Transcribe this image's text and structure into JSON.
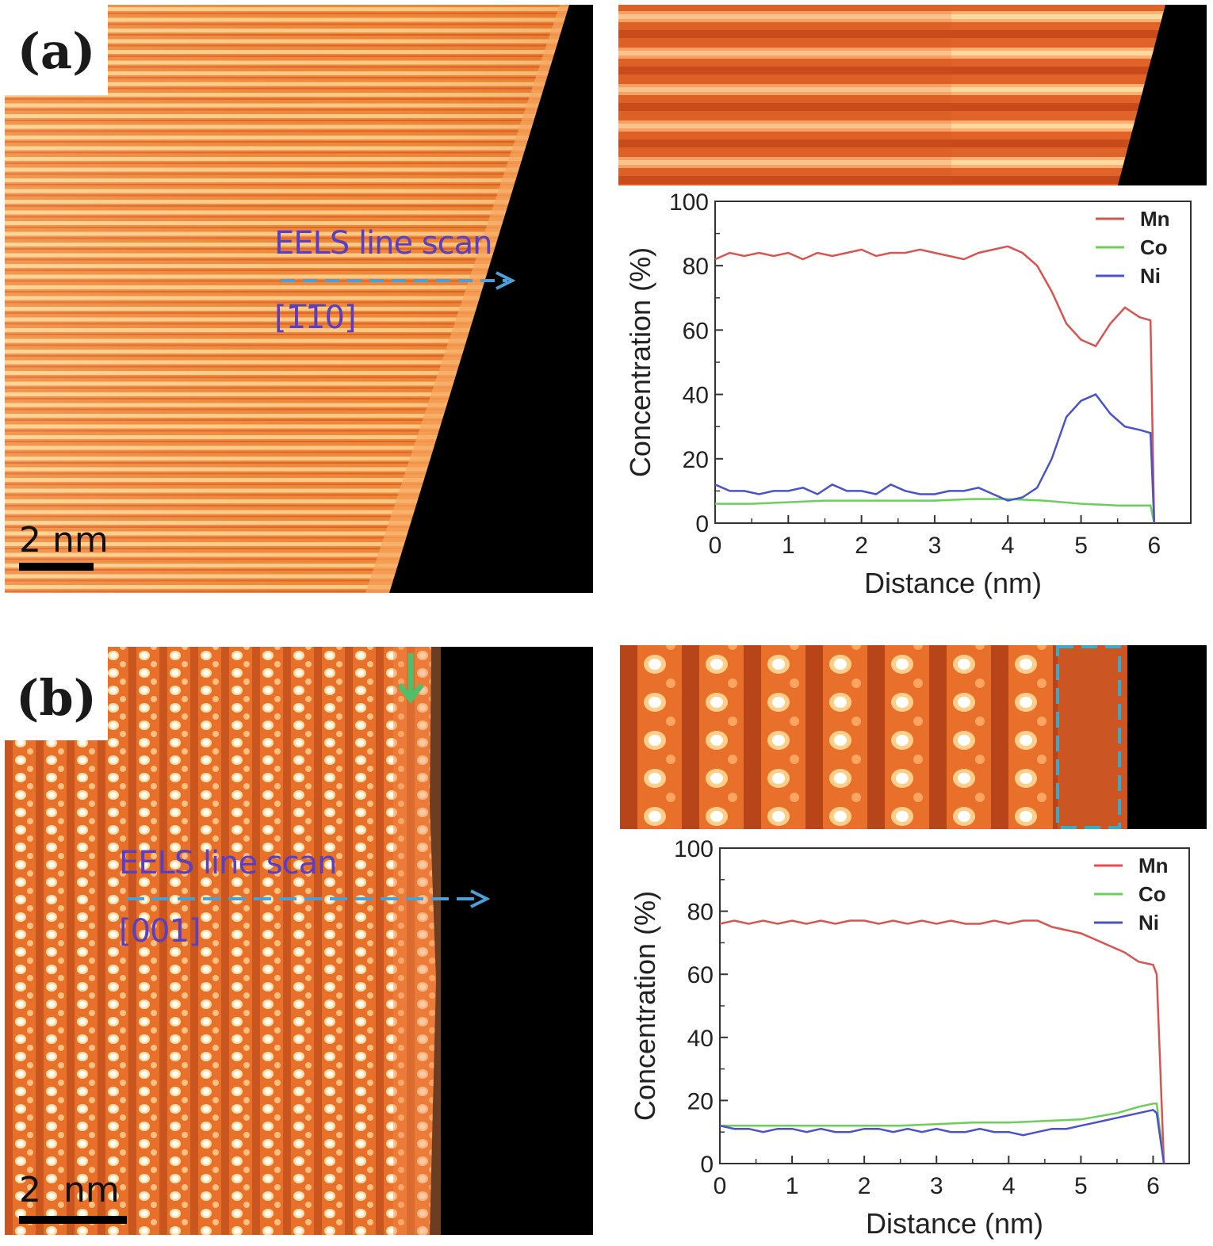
{
  "panel_a": {
    "tag": "(a)",
    "eels_label": "EELS line scan",
    "direction": "[1̅1̅0]",
    "scale": "2 nm"
  },
  "panel_b": {
    "tag": "(b)",
    "eels_label": "EELS line scan",
    "direction": "[001]",
    "scale": "2  nm"
  },
  "colors": {
    "mn": "#d9534f",
    "co": "#6ccf5a",
    "ni": "#4a52c9",
    "haadf": "#f07a2a"
  },
  "chart_data": [
    {
      "type": "line",
      "panel": "a",
      "xlabel": "Distance (nm)",
      "ylabel": "Concentration (%)",
      "xlim": [
        0,
        6.5
      ],
      "ylim": [
        0,
        100
      ],
      "xticks": [
        "0",
        "1",
        "2",
        "3",
        "4",
        "5",
        "6"
      ],
      "yticks": [
        "0",
        "20",
        "40",
        "60",
        "80",
        "100"
      ],
      "legend": "top-right",
      "series": [
        {
          "name": "Mn",
          "color": "#d9534f",
          "x": [
            0,
            0.2,
            0.4,
            0.6,
            0.8,
            1.0,
            1.2,
            1.4,
            1.6,
            1.8,
            2.0,
            2.2,
            2.4,
            2.6,
            2.8,
            3.0,
            3.2,
            3.4,
            3.6,
            3.8,
            4.0,
            4.2,
            4.4,
            4.6,
            4.8,
            5.0,
            5.2,
            5.4,
            5.6,
            5.8,
            5.95,
            6.0
          ],
          "y": [
            82,
            84,
            83,
            84,
            83,
            84,
            82,
            84,
            83,
            84,
            85,
            83,
            84,
            84,
            85,
            84,
            83,
            82,
            84,
            85,
            86,
            84,
            80,
            72,
            62,
            57,
            55,
            62,
            67,
            64,
            63,
            0
          ]
        },
        {
          "name": "Co",
          "color": "#6ccf5a",
          "x": [
            0,
            0.5,
            1.0,
            1.5,
            2.0,
            2.5,
            3.0,
            3.5,
            4.0,
            4.5,
            5.0,
            5.5,
            5.95,
            6.0
          ],
          "y": [
            6,
            6,
            6.5,
            7,
            7,
            7,
            7,
            7.5,
            7.5,
            7,
            6,
            5.5,
            5.5,
            0
          ]
        },
        {
          "name": "Ni",
          "color": "#4a52c9",
          "x": [
            0,
            0.2,
            0.4,
            0.6,
            0.8,
            1.0,
            1.2,
            1.4,
            1.6,
            1.8,
            2.0,
            2.2,
            2.4,
            2.6,
            2.8,
            3.0,
            3.2,
            3.4,
            3.6,
            3.8,
            4.0,
            4.2,
            4.4,
            4.6,
            4.8,
            5.0,
            5.2,
            5.4,
            5.6,
            5.8,
            5.95,
            6.0
          ],
          "y": [
            12,
            10,
            10,
            9,
            10,
            10,
            11,
            9,
            12,
            10,
            10,
            9,
            12,
            10,
            9,
            9,
            10,
            10,
            11,
            9,
            7,
            8,
            11,
            20,
            33,
            38,
            40,
            34,
            30,
            29,
            28,
            0
          ]
        }
      ]
    },
    {
      "type": "line",
      "panel": "b",
      "xlabel": "Distance (nm)",
      "ylabel": "Concentration (%)",
      "xlim": [
        0,
        6.5
      ],
      "ylim": [
        0,
        100
      ],
      "xticks": [
        "0",
        "1",
        "2",
        "3",
        "4",
        "5",
        "6"
      ],
      "yticks": [
        "0",
        "20",
        "40",
        "60",
        "80",
        "100"
      ],
      "legend": "top-right",
      "series": [
        {
          "name": "Mn",
          "color": "#d9534f",
          "x": [
            0,
            0.2,
            0.4,
            0.6,
            0.8,
            1.0,
            1.2,
            1.4,
            1.6,
            1.8,
            2.0,
            2.2,
            2.4,
            2.6,
            2.8,
            3.0,
            3.2,
            3.4,
            3.6,
            3.8,
            4.0,
            4.2,
            4.4,
            4.6,
            4.8,
            5.0,
            5.2,
            5.4,
            5.6,
            5.8,
            6.0,
            6.05,
            6.15
          ],
          "y": [
            76,
            77,
            76,
            77,
            76,
            77,
            76,
            77,
            76,
            77,
            77,
            76,
            77,
            76,
            77,
            76,
            77,
            76,
            76,
            77,
            76,
            77,
            77,
            75,
            74,
            73,
            71,
            69,
            67,
            64,
            63,
            60,
            0
          ]
        },
        {
          "name": "Co",
          "color": "#6ccf5a",
          "x": [
            0,
            0.5,
            1.0,
            1.5,
            2.0,
            2.5,
            3.0,
            3.5,
            4.0,
            4.5,
            5.0,
            5.5,
            5.8,
            6.0,
            6.05,
            6.15
          ],
          "y": [
            12,
            12,
            12,
            12,
            12,
            12,
            12.5,
            13,
            13,
            13.5,
            14,
            16,
            18,
            19,
            19,
            0
          ]
        },
        {
          "name": "Ni",
          "color": "#4a52c9",
          "x": [
            0,
            0.2,
            0.4,
            0.6,
            0.8,
            1.0,
            1.2,
            1.4,
            1.6,
            1.8,
            2.0,
            2.2,
            2.4,
            2.6,
            2.8,
            3.0,
            3.2,
            3.4,
            3.6,
            3.8,
            4.0,
            4.2,
            4.4,
            4.6,
            4.8,
            5.0,
            5.2,
            5.4,
            5.6,
            5.8,
            6.0,
            6.05,
            6.15
          ],
          "y": [
            12,
            11,
            11,
            10,
            11,
            11,
            10,
            11,
            10,
            10,
            11,
            11,
            10,
            11,
            10,
            11,
            10,
            10,
            11,
            10,
            10,
            9,
            10,
            11,
            11,
            12,
            13,
            14,
            15,
            16,
            17,
            16,
            0
          ]
        }
      ]
    }
  ]
}
